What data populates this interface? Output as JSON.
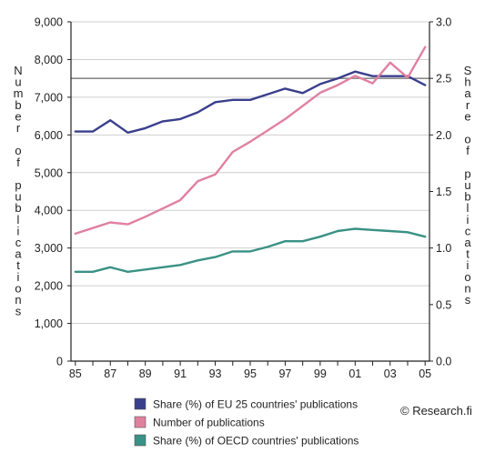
{
  "chart_data": {
    "type": "line",
    "title": "",
    "xlabel": "",
    "ylabel_left": "Number of publications",
    "ylabel_right": "Share of publications",
    "x_tick_labels": [
      "85",
      "87",
      "89",
      "91",
      "93",
      "95",
      "97",
      "99",
      "01",
      "03",
      "05"
    ],
    "x": [
      1985,
      1986,
      1987,
      1988,
      1989,
      1990,
      1991,
      1992,
      1993,
      1994,
      1995,
      1996,
      1997,
      1998,
      1999,
      2000,
      2001,
      2002,
      2003,
      2004,
      2005
    ],
    "xlim": [
      1984.75,
      2005.25
    ],
    "y_left_ticks": [
      "0",
      "1,000",
      "2,000",
      "3,000",
      "4,000",
      "5,000",
      "6,000",
      "7,000",
      "8,000",
      "9,000"
    ],
    "ylim_left": [
      0,
      9000
    ],
    "y_right_ticks": [
      "0.0",
      "0.5",
      "1.0",
      "1.5",
      "2.0",
      "2.5",
      "3.0"
    ],
    "ylim_right": [
      0,
      3.0
    ],
    "grid_y": true,
    "reference_line_right": 2.5,
    "series": [
      {
        "name": "Share (%) of EU 25 countries' publications",
        "axis": "right",
        "color": "#3a3f8c",
        "values": [
          2.03,
          2.03,
          2.13,
          2.02,
          2.06,
          2.12,
          2.14,
          2.2,
          2.29,
          2.31,
          2.31,
          2.36,
          2.41,
          2.37,
          2.45,
          2.5,
          2.56,
          2.52,
          2.52,
          2.52,
          2.44
        ]
      },
      {
        "name": "Number of publications",
        "axis": "left",
        "color": "#e0809f",
        "values": [
          3380,
          3530,
          3680,
          3630,
          3830,
          4050,
          4270,
          4770,
          4950,
          5550,
          5820,
          6120,
          6420,
          6770,
          7120,
          7320,
          7570,
          7370,
          7920,
          7520,
          8330
        ]
      },
      {
        "name": "Share (%) of OECD countries' publications",
        "axis": "right",
        "color": "#3a9185",
        "values": [
          0.79,
          0.79,
          0.83,
          0.79,
          0.81,
          0.83,
          0.85,
          0.89,
          0.92,
          0.97,
          0.97,
          1.01,
          1.06,
          1.06,
          1.1,
          1.15,
          1.17,
          1.16,
          1.15,
          1.14,
          1.1
        ]
      }
    ],
    "legend_position": "bottom",
    "credit": "© Research.fi"
  }
}
